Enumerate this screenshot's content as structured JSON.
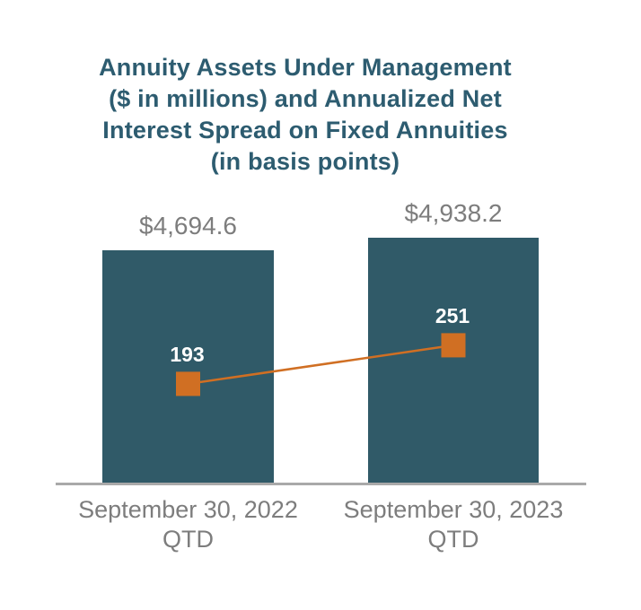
{
  "chart_data": {
    "type": "bar",
    "subtype": "bar-with-line-overlay",
    "title": "Annuity Assets Under Management ($ in millions) and Annualized Net Interest Spread on Fixed Annuities (in basis points)",
    "title_lines": [
      "Annuity Assets Under Management",
      "($ in millions) and Annualized Net",
      "Interest Spread on Fixed Annuities",
      "(in basis points)"
    ],
    "categories": [
      "September 30, 2022 QTD",
      "September 30, 2023 QTD"
    ],
    "x_tick_lines": [
      [
        "September 30, 2022",
        "QTD"
      ],
      [
        "September 30, 2023",
        "QTD"
      ]
    ],
    "series": [
      {
        "name": "Annuity Assets Under Management ($ in millions)",
        "type": "bar",
        "values": [
          4694.6,
          4938.2
        ],
        "data_labels": [
          "$4,694.6",
          "$4,938.2"
        ],
        "color": "#305a68",
        "data_label_color": "#7d7d7d"
      },
      {
        "name": "Annualized Net Interest Spread on Fixed Annuities (in basis points)",
        "type": "line",
        "values": [
          193,
          251
        ],
        "data_labels": [
          "193",
          "251"
        ],
        "color": "#d06f23",
        "marker": "square",
        "data_label_color": "#ffffff"
      }
    ],
    "legend": "none",
    "gridlines": false,
    "y_axis_visible": false,
    "baseline_color": "#a9a9a9",
    "background": "#ffffff",
    "title_color": "#2d5c70",
    "xtick_color": "#7d7d7d"
  }
}
